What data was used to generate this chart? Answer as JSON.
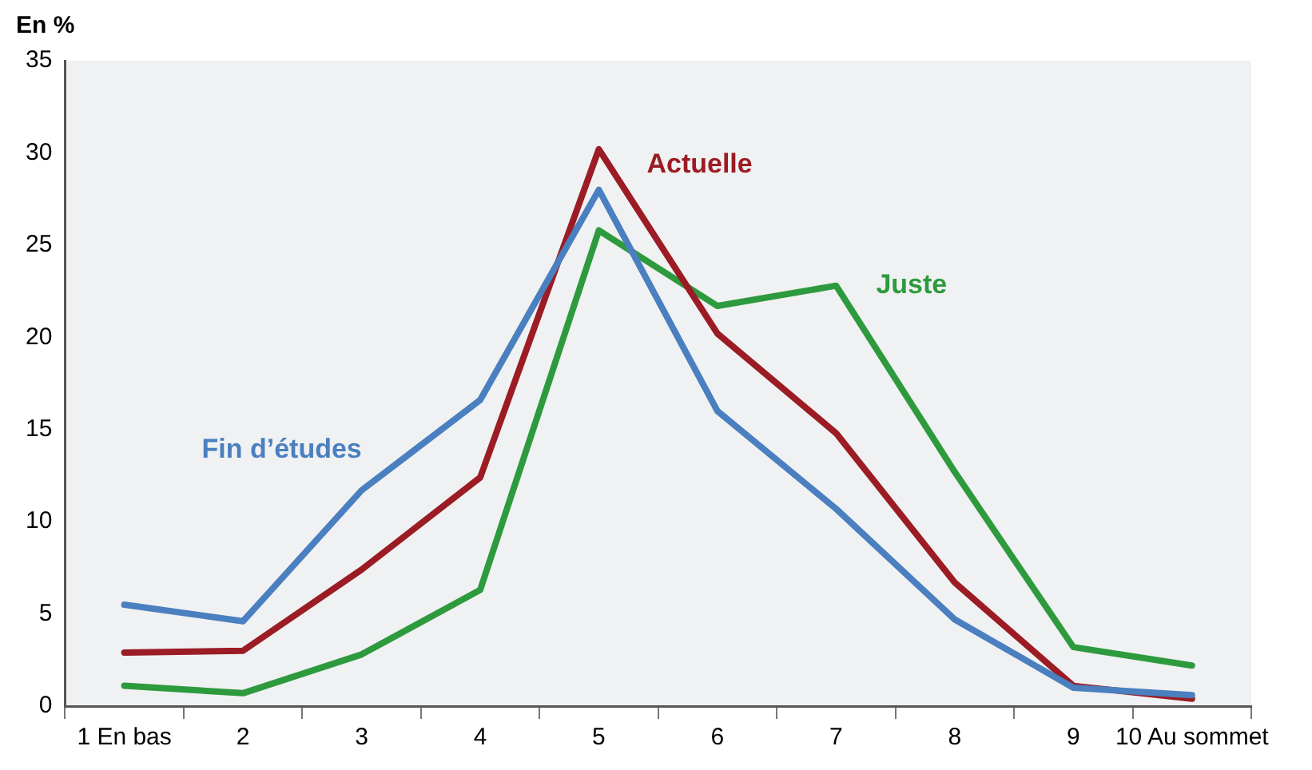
{
  "chart_data": {
    "type": "line",
    "ylabel": "En %",
    "categories": [
      "1 En bas",
      "2",
      "3",
      "4",
      "5",
      "6",
      "7",
      "8",
      "9",
      "10 Au sommet"
    ],
    "series": [
      {
        "name": "Fin d’études",
        "color": "#4a7fc0",
        "values": [
          5.5,
          4.6,
          11.7,
          16.6,
          28.0,
          16.0,
          10.7,
          4.7,
          1.0,
          0.6
        ]
      },
      {
        "name": "Actuelle",
        "color": "#9b1c24",
        "values": [
          2.9,
          3.0,
          7.4,
          12.4,
          30.2,
          20.2,
          14.8,
          6.7,
          1.1,
          0.4
        ]
      },
      {
        "name": "Juste",
        "color": "#2e9a3e",
        "values": [
          1.1,
          0.7,
          2.8,
          6.3,
          25.8,
          21.7,
          22.8,
          12.7,
          3.2,
          2.2
        ]
      }
    ],
    "ylim": [
      0,
      35
    ],
    "yticks": [
      0,
      5,
      10,
      15,
      20,
      25,
      30,
      35
    ],
    "grid": false,
    "legend": false,
    "marker": "none",
    "line_style": "solid"
  }
}
